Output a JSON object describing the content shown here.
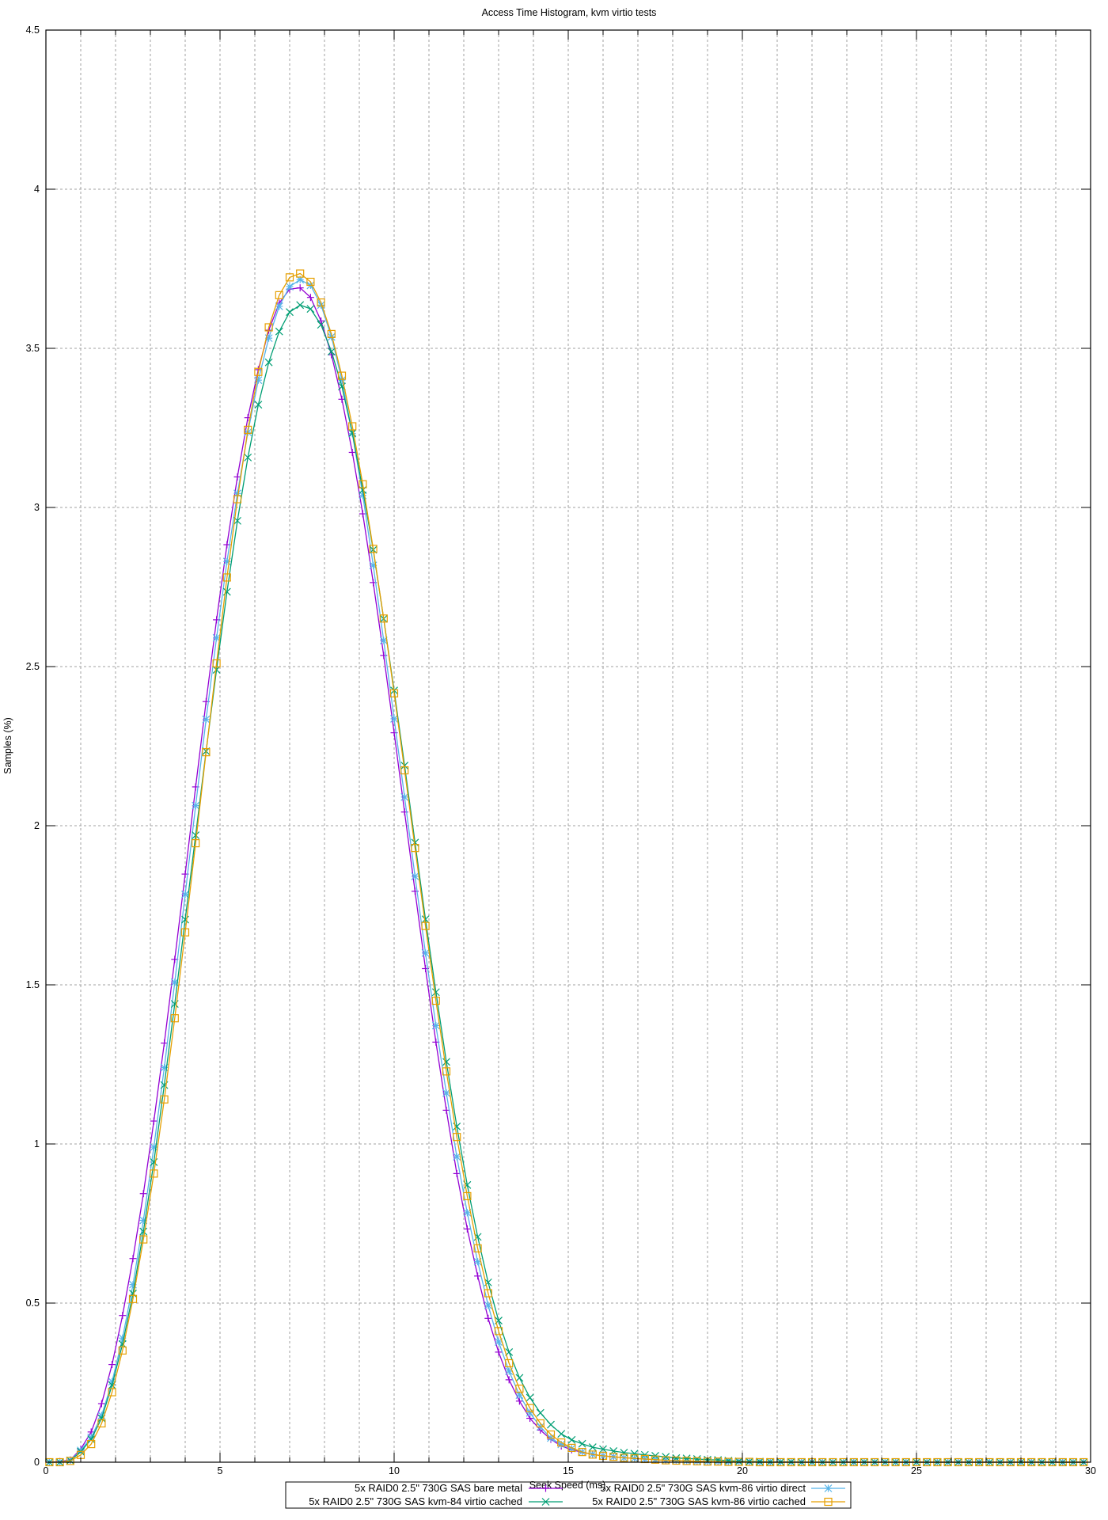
{
  "chart_data": {
    "type": "line",
    "title": "Access Time Histogram, kvm virtio tests",
    "xlabel": "Seek Speed (ms)",
    "ylabel": "Samples (%)",
    "xlim": [
      0,
      30
    ],
    "ylim": [
      0,
      4.5
    ],
    "x_ticks": [
      "0",
      "5",
      "10",
      "15",
      "20",
      "25",
      "30"
    ],
    "y_ticks": [
      "0",
      "0.5",
      "1",
      "1.5",
      "2",
      "2.5",
      "3",
      "3.5",
      "4",
      "4.5"
    ],
    "grid": true,
    "legend_position": "bottom",
    "x": [
      0.1,
      0.4,
      0.7,
      1.0,
      1.3,
      1.6,
      1.9,
      2.2,
      2.5,
      2.8,
      3.1,
      3.4,
      3.7,
      4.0,
      4.3,
      4.6,
      4.9,
      5.2,
      5.5,
      5.8,
      6.1,
      6.4,
      6.7,
      7.0,
      7.3,
      7.6,
      7.9,
      8.2,
      8.5,
      8.8,
      9.1,
      9.4,
      9.7,
      10.0,
      10.3,
      10.6,
      10.9,
      11.2,
      11.5,
      11.8,
      12.1,
      12.4,
      12.7,
      13.0,
      13.3,
      13.6,
      13.9,
      14.2,
      14.5,
      14.8,
      15.1,
      15.4,
      15.7,
      16.0,
      16.3,
      16.6,
      16.9,
      17.2,
      17.5,
      17.8,
      18.1,
      18.4,
      18.7,
      19.0,
      19.3,
      19.6,
      19.9,
      20.2,
      20.5,
      20.8,
      21.1,
      21.4,
      21.7,
      22.0,
      22.3,
      22.6,
      22.9,
      23.2,
      23.5,
      23.8,
      24.1,
      24.4,
      24.7,
      25.0,
      25.3,
      25.6,
      25.9,
      26.2,
      26.5,
      26.8,
      27.1,
      27.4,
      27.7,
      28.0,
      28.3,
      28.6,
      28.9,
      29.2,
      29.5,
      29.8
    ],
    "series": [
      {
        "name": "5x RAID0 2.5\" 730G SAS bare metal",
        "color": "#9400d3",
        "marker": "plus",
        "values": [
          0,
          0.002,
          0.007,
          0.041,
          0.095,
          0.184,
          0.307,
          0.461,
          0.64,
          0.844,
          1.072,
          1.317,
          1.58,
          1.848,
          2.122,
          2.39,
          2.647,
          2.883,
          3.096,
          3.282,
          3.433,
          3.557,
          3.642,
          3.686,
          3.69,
          3.66,
          3.586,
          3.48,
          3.34,
          3.173,
          2.98,
          2.764,
          2.535,
          2.292,
          2.043,
          1.794,
          1.551,
          1.32,
          1.106,
          0.907,
          0.733,
          0.585,
          0.452,
          0.346,
          0.259,
          0.192,
          0.138,
          0.101,
          0.072,
          0.051,
          0.039,
          0.031,
          0.025,
          0.02,
          0.017,
          0.014,
          0.012,
          0.01,
          0.008,
          0.006,
          0.005,
          0.004,
          0.003,
          0.002,
          0.002,
          0.001,
          0.001,
          0.001,
          0,
          0,
          0,
          0,
          0,
          0,
          0,
          0,
          0,
          0,
          0,
          0,
          0,
          0,
          0,
          0,
          0,
          0,
          0,
          0,
          0,
          0,
          0,
          0,
          0,
          0,
          0,
          0,
          0,
          0,
          0,
          0
        ]
      },
      {
        "name": "5x RAID0 2.5\" 730G SAS kvm-86 virtio direct",
        "color": "#56b4e9",
        "marker": "asterisk",
        "values": [
          0,
          0,
          0.006,
          0.037,
          0.078,
          0.147,
          0.253,
          0.39,
          0.558,
          0.76,
          0.99,
          1.24,
          1.508,
          1.784,
          2.063,
          2.334,
          2.59,
          2.83,
          3.044,
          3.236,
          3.4,
          3.532,
          3.632,
          3.694,
          3.716,
          3.698,
          3.636,
          3.536,
          3.4,
          3.232,
          3.038,
          2.818,
          2.582,
          2.336,
          2.09,
          1.841,
          1.6,
          1.372,
          1.16,
          0.96,
          0.784,
          0.63,
          0.493,
          0.378,
          0.286,
          0.211,
          0.155,
          0.111,
          0.076,
          0.056,
          0.043,
          0.032,
          0.025,
          0.02,
          0.017,
          0.014,
          0.012,
          0.01,
          0.008,
          0.006,
          0.005,
          0.004,
          0.003,
          0.002,
          0.002,
          0.001,
          0.001,
          0.001,
          0,
          0,
          0,
          0,
          0,
          0,
          0,
          0,
          0,
          0,
          0,
          0,
          0,
          0,
          0,
          0,
          0,
          0,
          0,
          0,
          0,
          0,
          0,
          0,
          0,
          0,
          0,
          0,
          0,
          0,
          0,
          0
        ]
      },
      {
        "name": "5x RAID0 2.5\" 730G SAS kvm-84 virtio cached",
        "color": "#009e73",
        "marker": "cross",
        "values": [
          0,
          0,
          0.005,
          0.033,
          0.072,
          0.138,
          0.242,
          0.371,
          0.53,
          0.725,
          0.943,
          1.185,
          1.44,
          1.705,
          1.97,
          2.234,
          2.49,
          2.735,
          2.958,
          3.157,
          3.323,
          3.456,
          3.553,
          3.614,
          3.636,
          3.624,
          3.574,
          3.49,
          3.38,
          3.234,
          3.055,
          2.867,
          2.65,
          2.425,
          2.189,
          1.947,
          1.706,
          1.477,
          1.258,
          1.055,
          0.871,
          0.708,
          0.565,
          0.445,
          0.346,
          0.265,
          0.203,
          0.155,
          0.118,
          0.089,
          0.07,
          0.058,
          0.047,
          0.041,
          0.035,
          0.03,
          0.027,
          0.023,
          0.02,
          0.017,
          0.013,
          0.012,
          0.01,
          0.008,
          0.007,
          0.005,
          0.003,
          0.002,
          0.002,
          0.001,
          0.001,
          0.001,
          0,
          0,
          0,
          0,
          0,
          0,
          0,
          0,
          0,
          0,
          0,
          0,
          0,
          0,
          0,
          0,
          0,
          0,
          0,
          0,
          0,
          0,
          0,
          0,
          0,
          0,
          0,
          0
        ]
      },
      {
        "name": "5x RAID0 2.5\" 730G SAS kvm-86 virtio cached",
        "color": "#e69f00",
        "marker": "square",
        "values": [
          0,
          0,
          0.004,
          0.023,
          0.057,
          0.122,
          0.22,
          0.351,
          0.513,
          0.7,
          0.907,
          1.14,
          1.395,
          1.665,
          1.945,
          2.231,
          2.51,
          2.78,
          3.026,
          3.244,
          3.426,
          3.566,
          3.667,
          3.723,
          3.735,
          3.709,
          3.644,
          3.545,
          3.414,
          3.255,
          3.073,
          2.87,
          2.651,
          2.416,
          2.174,
          1.93,
          1.685,
          1.45,
          1.228,
          1.022,
          0.836,
          0.672,
          0.531,
          0.412,
          0.311,
          0.231,
          0.17,
          0.122,
          0.087,
          0.062,
          0.045,
          0.032,
          0.024,
          0.02,
          0.017,
          0.014,
          0.012,
          0.01,
          0.008,
          0.006,
          0.005,
          0.004,
          0.003,
          0.002,
          0.002,
          0.001,
          0.001,
          0.001,
          0,
          0,
          0,
          0,
          0,
          0,
          0,
          0,
          0,
          0,
          0,
          0,
          0,
          0,
          0,
          0,
          0,
          0,
          0,
          0,
          0,
          0,
          0,
          0,
          0,
          0,
          0,
          0,
          0,
          0,
          0,
          0
        ]
      }
    ]
  }
}
